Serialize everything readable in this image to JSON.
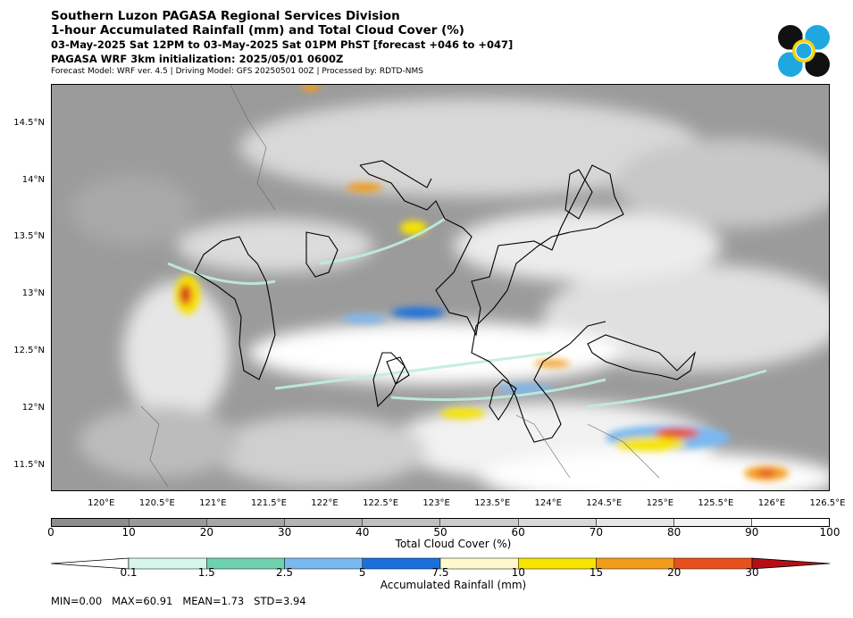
{
  "header": {
    "line1": "Southern Luzon PAGASA Regional Services Division",
    "line2": "1-hour Accumulated Rainfall (mm) and Total Cloud Cover (%)",
    "line3": "03-May-2025 Sat 12PM to 03-May-2025 Sat 01PM PhST [forecast +046 to +047]",
    "line4": "PAGASA WRF 3km initialization: 2025/05/01 0600Z",
    "line5": "Forecast Model: WRF ver. 4.5 | Driving Model: GFS 20250501 00Z | Processed by: RDTD-NMS"
  },
  "logo": {
    "icon": "pagasa-logo-icon",
    "colors": [
      "#111111",
      "#1fa8e0",
      "#f5d20a"
    ]
  },
  "map": {
    "lat_labels": [
      "14.5°N",
      "14°N",
      "13.5°N",
      "13°N",
      "12.5°N",
      "12°N",
      "11.5°N"
    ],
    "lon_labels": [
      "120°E",
      "120.5°E",
      "121°E",
      "121.5°E",
      "122°E",
      "122.5°E",
      "123°E",
      "123.5°E",
      "124°E",
      "124.5°E",
      "125°E",
      "125.5°E",
      "126°E",
      "126.5°E"
    ],
    "lat_values": [
      14.5,
      14,
      13.5,
      13,
      12.5,
      12,
      11.5
    ],
    "lon_values": [
      120,
      120.5,
      121,
      121.5,
      122,
      122.5,
      123,
      123.5,
      124,
      124.5,
      125,
      125.5,
      126,
      126.5
    ],
    "extent": {
      "lon_min": 119.55,
      "lon_max": 126.52,
      "lat_min": 11.28,
      "lat_max": 14.85
    }
  },
  "cloud_colorbar": {
    "ticks": [
      "0",
      "10",
      "20",
      "30",
      "40",
      "50",
      "60",
      "70",
      "80",
      "90",
      "100"
    ],
    "colors": [
      "#8c8c8c",
      "#999999",
      "#a6a6a6",
      "#b3b3b3",
      "#c0c0c0",
      "#cccccc",
      "#d9d9d9",
      "#e6e6e6",
      "#f2f2f2",
      "#ffffff"
    ],
    "label": "Total Cloud Cover (%)"
  },
  "rain_colorbar": {
    "ticks": [
      "0.1",
      "1.5",
      "2.5",
      "5",
      "7.5",
      "10",
      "15",
      "20",
      "30"
    ],
    "colors": [
      "#ffffff",
      "#d7f5ec",
      "#6fd3b0",
      "#7ab8f0",
      "#1a6fdc",
      "#fffacd",
      "#f7e400",
      "#f29c1a",
      "#e8501e",
      "#b50f14"
    ],
    "label": "Accumulated Rainfall (mm)"
  },
  "stats": "MIN=0.00   MAX=60.91   MEAN=1.73   STD=3.94"
}
